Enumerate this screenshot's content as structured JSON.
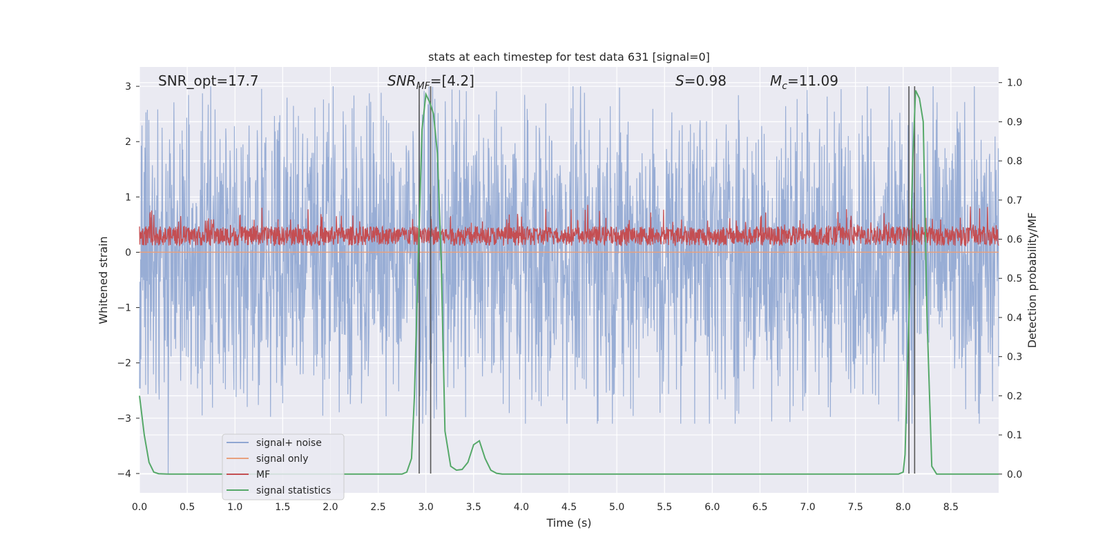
{
  "chart_data": {
    "type": "line",
    "title": "stats at each timestep for test data 631 [signal=0]",
    "xlabel": "Time (s)",
    "ylabel_left": "Whitened strain",
    "ylabel_right": "Detection probability/MF",
    "xlim": [
      0,
      9.0
    ],
    "ylim_left": [
      -4.35,
      3.35
    ],
    "ylim_right": [
      -0.048,
      1.04
    ],
    "x_ticks": [
      "0.0",
      "0.5",
      "1.0",
      "1.5",
      "2.0",
      "2.5",
      "3.0",
      "3.5",
      "4.0",
      "4.5",
      "5.0",
      "5.5",
      "6.0",
      "6.5",
      "7.0",
      "7.5",
      "8.0",
      "8.5"
    ],
    "y_left_ticks": [
      {
        "v": 3,
        "label": "3"
      },
      {
        "v": 2,
        "label": "2"
      },
      {
        "v": 1,
        "label": "1"
      },
      {
        "v": 0,
        "label": "0"
      },
      {
        "v": -1,
        "label": "−1"
      },
      {
        "v": -2,
        "label": "−2"
      },
      {
        "v": -3,
        "label": "−3"
      },
      {
        "v": -4,
        "label": "−4"
      }
    ],
    "y_right_ticks": [
      "0.0",
      "0.1",
      "0.2",
      "0.3",
      "0.4",
      "0.5",
      "0.6",
      "0.7",
      "0.8",
      "0.9",
      "1.0"
    ],
    "annotations": {
      "snr_opt": "SNR_opt=17.7",
      "snr_mf_main": "SNR",
      "snr_mf_sub": "MF",
      "snr_mf_value": "=[4.2]",
      "s_main": "S",
      "s_value": "=0.98",
      "mc_main": "M",
      "mc_sub": "c",
      "mc_value": "=11.09"
    },
    "legend": [
      "signal+ noise",
      "signal only",
      "MF",
      "signal statistics"
    ],
    "colors": {
      "noise": "#8fa6d1",
      "signal_only": "#e8a07d",
      "mf": "#c44e52",
      "stat": "#55a868",
      "vline": "#555555",
      "background": "#eaeaf2",
      "grid": "#ffffff"
    },
    "series": [
      {
        "name": "signal+ noise",
        "axis": "left",
        "amplitude_range": [
          -4.0,
          3.0
        ],
        "note": "dense noise time series"
      },
      {
        "name": "signal only",
        "axis": "left",
        "value": 0.0
      },
      {
        "name": "MF",
        "axis": "left",
        "range": [
          0.0,
          0.95
        ],
        "note": "dense matched-filter output"
      },
      {
        "name": "signal statistics",
        "axis": "right",
        "x": [
          0.0,
          0.05,
          0.1,
          0.15,
          0.2,
          0.3,
          0.5,
          1.0,
          1.5,
          2.0,
          2.5,
          2.75,
          2.8,
          2.85,
          2.88,
          2.92,
          2.96,
          3.0,
          3.04,
          3.08,
          3.12,
          3.16,
          3.2,
          3.26,
          3.32,
          3.38,
          3.44,
          3.5,
          3.56,
          3.62,
          3.68,
          3.74,
          3.8,
          4.0,
          5.0,
          6.0,
          7.0,
          7.5,
          7.95,
          8.0,
          8.02,
          8.06,
          8.1,
          8.13,
          8.17,
          8.21,
          8.25,
          8.3,
          8.35,
          8.5,
          9.0
        ],
        "y": [
          0.2,
          0.1,
          0.03,
          0.005,
          0.001,
          0.0,
          0.0,
          0.0,
          0.0,
          0.0,
          0.0,
          0.0,
          0.005,
          0.04,
          0.2,
          0.55,
          0.88,
          0.97,
          0.95,
          0.92,
          0.82,
          0.55,
          0.11,
          0.02,
          0.01,
          0.012,
          0.03,
          0.075,
          0.085,
          0.04,
          0.01,
          0.002,
          0.0,
          0.0,
          0.0,
          0.0,
          0.0,
          0.0,
          0.0,
          0.005,
          0.05,
          0.4,
          0.8,
          0.98,
          0.96,
          0.9,
          0.4,
          0.02,
          0.0,
          0.0,
          0.0
        ]
      }
    ],
    "vertical_lines_x": [
      2.93,
      3.05,
      8.06,
      8.12
    ]
  }
}
